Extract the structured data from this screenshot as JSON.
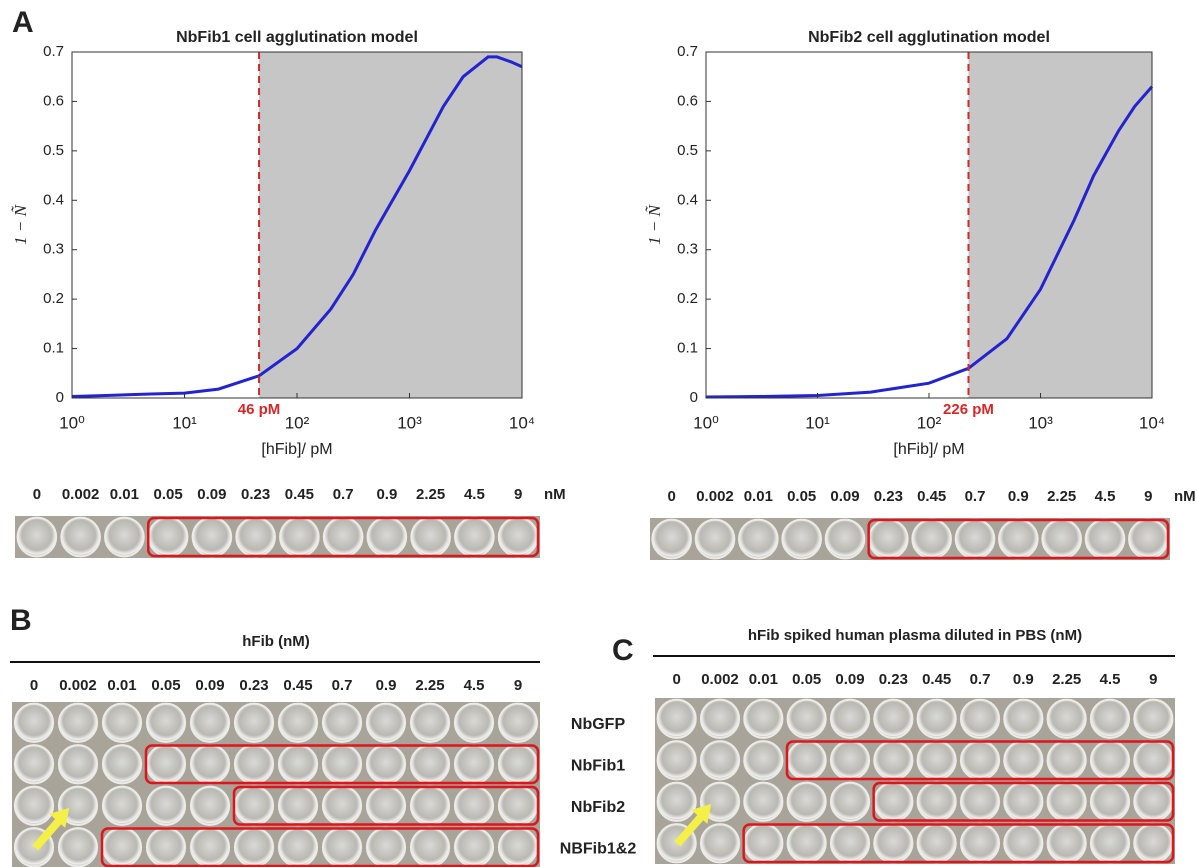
{
  "panel_labels": [
    "A",
    "B",
    "C"
  ],
  "chart_data": [
    {
      "type": "line",
      "title": "NbFib1 cell agglutination model",
      "x_label": "[hFib]/ pM",
      "y_label": "1 − Ñ",
      "log_x": true,
      "xlim": [
        1,
        10000
      ],
      "xticks": [
        {
          "value": 1,
          "label": "10⁰"
        },
        {
          "value": 10,
          "label": "10¹"
        },
        {
          "value": 100,
          "label": "10²"
        },
        {
          "value": 1000,
          "label": "10³"
        },
        {
          "value": 10000,
          "label": "10⁴"
        }
      ],
      "ylim": [
        0,
        0.7
      ],
      "yticks": [
        0,
        0.1,
        0.2,
        0.3,
        0.4,
        0.5,
        0.6,
        0.7
      ],
      "series": [
        {
          "color": "#2323d0",
          "x": [
            1,
            2,
            5,
            10,
            20,
            46,
            100,
            200,
            316,
            500,
            1000,
            2000,
            3000,
            5000,
            6000,
            8000,
            10000
          ],
          "values": [
            0.003,
            0.005,
            0.008,
            0.01,
            0.018,
            0.045,
            0.1,
            0.18,
            0.25,
            0.34,
            0.46,
            0.59,
            0.65,
            0.69,
            0.69,
            0.68,
            0.67
          ]
        }
      ],
      "threshold": {
        "value": 46,
        "label": "46 pM",
        "color": "#d62728"
      },
      "shade_color": "#c6c6c6"
    },
    {
      "type": "line",
      "title": "NbFib2 cell agglutination model",
      "x_label": "[hFib]/ pM",
      "y_label": "1 − Ñ",
      "log_x": true,
      "xlim": [
        1,
        10000
      ],
      "xticks": [
        {
          "value": 1,
          "label": "10⁰"
        },
        {
          "value": 10,
          "label": "10¹"
        },
        {
          "value": 100,
          "label": "10²"
        },
        {
          "value": 1000,
          "label": "10³"
        },
        {
          "value": 10000,
          "label": "10⁴"
        }
      ],
      "ylim": [
        0,
        0.7
      ],
      "yticks": [
        0,
        0.1,
        0.2,
        0.3,
        0.4,
        0.5,
        0.6,
        0.7
      ],
      "series": [
        {
          "color": "#2323d0",
          "x": [
            1,
            3,
            10,
            30,
            100,
            226,
            500,
            1000,
            2000,
            3000,
            5000,
            7000,
            10000
          ],
          "values": [
            0.002,
            0.003,
            0.005,
            0.012,
            0.03,
            0.06,
            0.12,
            0.22,
            0.36,
            0.45,
            0.54,
            0.59,
            0.63
          ]
        }
      ],
      "threshold": {
        "value": 226,
        "label": "226 pM",
        "color": "#d62728"
      },
      "shade_color": "#c6c6c6"
    }
  ],
  "well_strips": [
    {
      "concentrations": [
        "0",
        "0.002",
        "0.01",
        "0.05",
        "0.09",
        "0.23",
        "0.45",
        "0.7",
        "0.9",
        "2.25",
        "4.5",
        "9"
      ],
      "unit": "nM",
      "boxed_from": 3
    },
    {
      "concentrations": [
        "0",
        "0.002",
        "0.01",
        "0.05",
        "0.09",
        "0.23",
        "0.45",
        "0.7",
        "0.9",
        "2.25",
        "4.5",
        "9"
      ],
      "unit": "nM",
      "boxed_from": 5
    }
  ],
  "well_plates": [
    {
      "title": "hFib (nM)",
      "concentrations": [
        "0",
        "0.002",
        "0.01",
        "0.05",
        "0.09",
        "0.23",
        "0.45",
        "0.7",
        "0.9",
        "2.25",
        "4.5",
        "9"
      ],
      "rows": [
        {
          "label": "NbGFP",
          "boxed_from": null
        },
        {
          "label": "NbFib1",
          "boxed_from": 3
        },
        {
          "label": "NbFib2",
          "boxed_from": 5
        },
        {
          "label": "NBFib1&2",
          "boxed_from": 2
        }
      ]
    },
    {
      "title": "hFib spiked human plasma diluted in PBS (nM)",
      "concentrations": [
        "0",
        "0.002",
        "0.01",
        "0.05",
        "0.09",
        "0.23",
        "0.45",
        "0.7",
        "0.9",
        "2.25",
        "4.5",
        "9"
      ],
      "rows": [
        {
          "label": "NbGFP",
          "boxed_from": null
        },
        {
          "label": "NbFib1",
          "boxed_from": 3
        },
        {
          "label": "NbFib2",
          "boxed_from": 5
        },
        {
          "label": "NBFib1&2",
          "boxed_from": 2
        }
      ]
    }
  ]
}
